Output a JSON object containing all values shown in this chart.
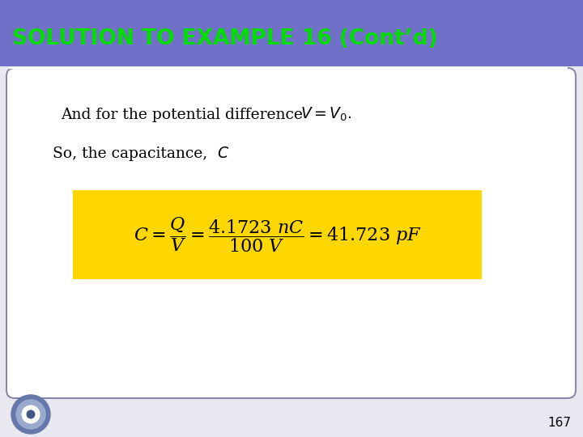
{
  "title": "SOLUTION TO EXAMPLE 16 (Cont’d)",
  "title_bg_color": "#7070c8",
  "title_text_color": "#00dd00",
  "title_fontsize": 19,
  "line_color": "#ffffff",
  "body_bg_color": "#ffffff",
  "outer_bg_color": "#e8e8f0",
  "border_color": "#8888aa",
  "formula_bg": "#FFD700",
  "formula_text_color": "#000000",
  "page_number": "167",
  "page_num_color": "#000000",
  "page_num_fontsize": 11,
  "text1_normal": "And for the potential difference  ",
  "text1_math": "$V = V_0$.",
  "text2_normal": "So, the capacitance,  ",
  "text2_math": "$C$",
  "formula_math": "$C = \\dfrac{Q}{V} = \\dfrac{4.1723\\ nC}{100\\ V} = 41.723\\ pF$"
}
